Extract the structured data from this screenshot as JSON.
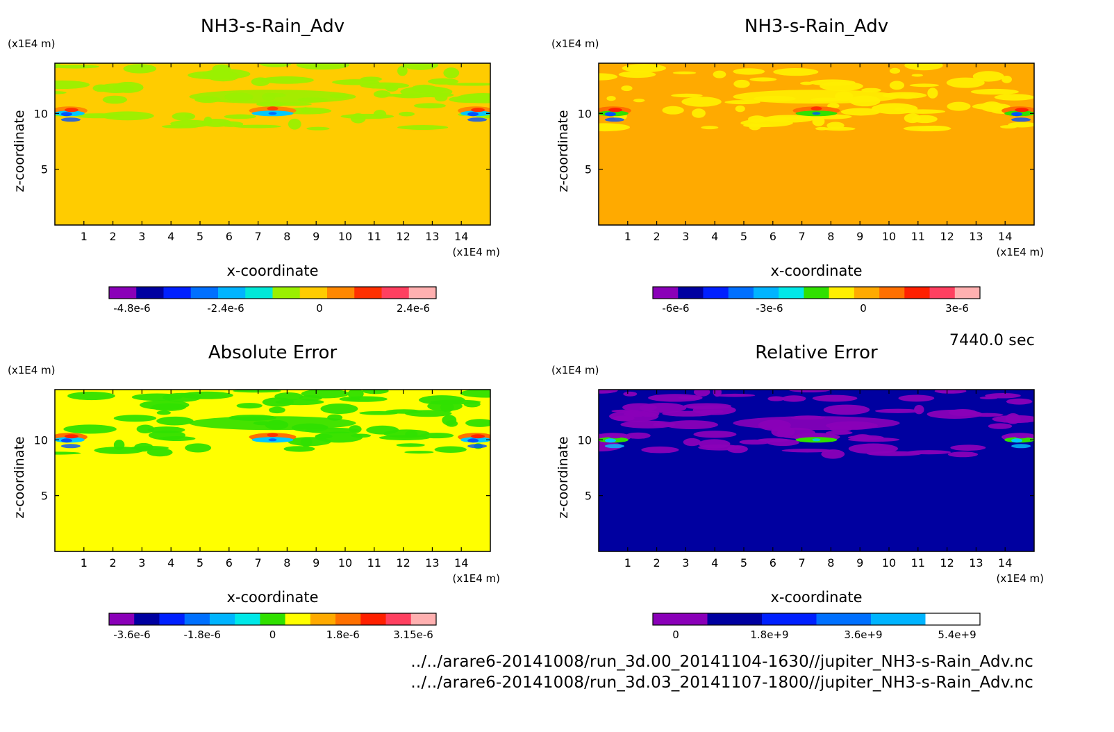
{
  "time_label": "7440.0 sec",
  "files": [
    "../../arare6-20141008/run_3d.00_20141104-1630//jupiter_NH3-s-Rain_Adv.nc",
    "../../arare6-20141008/run_3d.03_20141107-1800//jupiter_NH3-s-Rain_Adv.nc"
  ],
  "chart_data": [
    {
      "type": "heatmap",
      "title": "NH3-s-Rain_Adv",
      "xlabel": "x-coordinate",
      "ylabel": "z-coordinate",
      "x_unit": "(x1E4 m)",
      "y_unit": "(x1E4 m)",
      "xlim": [
        0,
        15
      ],
      "ylim": [
        0,
        14.5
      ],
      "xticks": [
        1,
        2,
        3,
        4,
        5,
        6,
        7,
        8,
        9,
        10,
        11,
        12,
        13,
        14
      ],
      "yticks": [
        5,
        10
      ],
      "background_level": "0",
      "colorbar": {
        "colors": [
          "#8a00b8",
          "#0000a0",
          "#0020ff",
          "#0070ff",
          "#00b4ff",
          "#00e8d8",
          "#9af000",
          "#ffcc00",
          "#ff8800",
          "#ff3000",
          "#ff4060",
          "#ffb0b0"
        ],
        "tick_labels": [
          "-4.8e-6",
          "-2.4e-6",
          "0",
          "2.4e-6"
        ]
      }
    },
    {
      "type": "heatmap",
      "title": "NH3-s-Rain_Adv",
      "xlabel": "x-coordinate",
      "ylabel": "z-coordinate",
      "x_unit": "(x1E4 m)",
      "y_unit": "(x1E4 m)",
      "xlim": [
        0,
        15
      ],
      "ylim": [
        0,
        14.5
      ],
      "xticks": [
        1,
        2,
        3,
        4,
        5,
        6,
        7,
        8,
        9,
        10,
        11,
        12,
        13,
        14
      ],
      "yticks": [
        5,
        10
      ],
      "background_level": "0",
      "colorbar": {
        "colors": [
          "#8a00b8",
          "#0000a0",
          "#0020ff",
          "#0070ff",
          "#00b4ff",
          "#00e8e8",
          "#30e000",
          "#ffee00",
          "#ffaa00",
          "#ff7000",
          "#ff2000",
          "#ff4060",
          "#ffb0b0"
        ],
        "tick_labels": [
          "-6e-6",
          "-3e-6",
          "0",
          "3e-6"
        ]
      }
    },
    {
      "type": "heatmap",
      "title": "Absolute Error",
      "xlabel": "x-coordinate",
      "ylabel": "z-coordinate",
      "x_unit": "(x1E4 m)",
      "y_unit": "(x1E4 m)",
      "xlim": [
        0,
        15
      ],
      "ylim": [
        0,
        14.5
      ],
      "xticks": [
        1,
        2,
        3,
        4,
        5,
        6,
        7,
        8,
        9,
        10,
        11,
        12,
        13,
        14
      ],
      "yticks": [
        5,
        10
      ],
      "background_level": "0",
      "colorbar": {
        "colors": [
          "#8a00b8",
          "#0000a0",
          "#0020ff",
          "#0070ff",
          "#00b4ff",
          "#00e8e8",
          "#30e000",
          "#ffff00",
          "#ffaa00",
          "#ff7000",
          "#ff2000",
          "#ff4060",
          "#ffb0b0"
        ],
        "tick_labels": [
          "-3.6e-6",
          "-1.8e-6",
          "0",
          "1.8e-6",
          "3.15e-6"
        ]
      }
    },
    {
      "type": "heatmap",
      "title": "Relative Error",
      "xlabel": "x-coordinate",
      "ylabel": "z-coordinate",
      "x_unit": "(x1E4 m)",
      "y_unit": "(x1E4 m)",
      "xlim": [
        0,
        15
      ],
      "ylim": [
        0,
        14.5
      ],
      "xticks": [
        1,
        2,
        3,
        4,
        5,
        6,
        7,
        8,
        9,
        10,
        11,
        12,
        13,
        14
      ],
      "yticks": [
        5,
        10
      ],
      "background_level": "low",
      "colorbar": {
        "colors": [
          "#8a00b8",
          "#0000a0",
          "#0020ff",
          "#0070ff",
          "#00b4ff",
          "#ffffff"
        ],
        "tick_labels": [
          "0",
          "1.8e+9",
          "3.6e+9",
          "5.4e+9"
        ]
      }
    }
  ]
}
